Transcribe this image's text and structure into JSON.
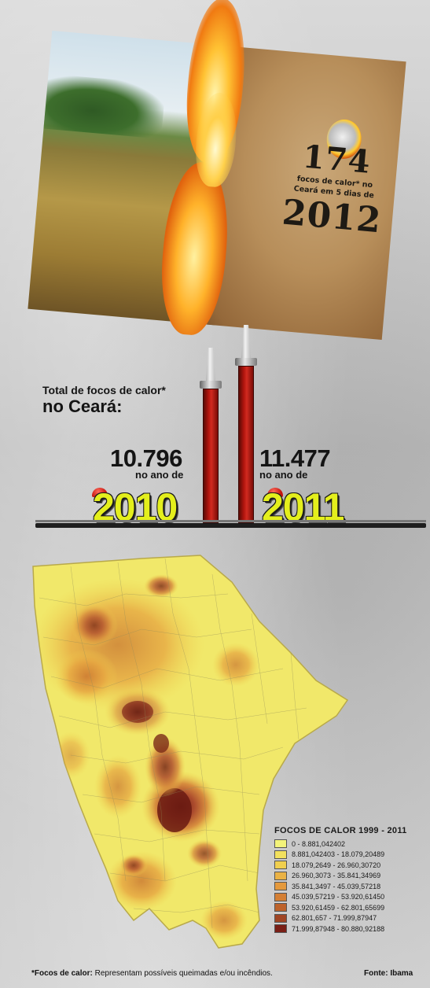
{
  "poster": {
    "count": "174",
    "subtitle_line1": "focos de calor* no",
    "subtitle_line2": "Ceará em 5 dias de",
    "year": "2012"
  },
  "totals": {
    "label_line1": "Total de focos de calor*",
    "label_line2": "no Ceará:",
    "items": [
      {
        "value": "10.796",
        "sub": "no ano de",
        "year": "2010"
      },
      {
        "value": "11.477",
        "sub": "no ano de",
        "year": "2011"
      }
    ]
  },
  "chart_data": {
    "type": "bar",
    "categories": [
      "2010",
      "2011"
    ],
    "values": [
      10796,
      11477
    ]
  },
  "legend": {
    "title": "FOCOS DE CALOR 1999 - 2011",
    "items": [
      {
        "label": "0 - 8.881,042402",
        "color": "#f3f37a"
      },
      {
        "label": "8.881,042403 - 18.079,20489",
        "color": "#f2e15e"
      },
      {
        "label": "18.079,2649 - 26.960,30720",
        "color": "#f0cf4e"
      },
      {
        "label": "26.960,3073 - 35.841,34969",
        "color": "#eab245"
      },
      {
        "label": "35.841,3497 - 45.039,57218",
        "color": "#e4993c"
      },
      {
        "label": "45.039,57219 - 53.920,61450",
        "color": "#d47f34"
      },
      {
        "label": "53.920,61459 - 62.801,65699",
        "color": "#bd632c"
      },
      {
        "label": "62.801,657 - 71.999,87947",
        "color": "#a04524"
      },
      {
        "label": "71.999,87948 - 80.880,92188",
        "color": "#7a1f16"
      }
    ]
  },
  "footer": {
    "note_label": "*Focos de calor:",
    "note_text": "Representam possíveis queimadas e/ou incêndios.",
    "source": "Fonte: Ibama"
  }
}
